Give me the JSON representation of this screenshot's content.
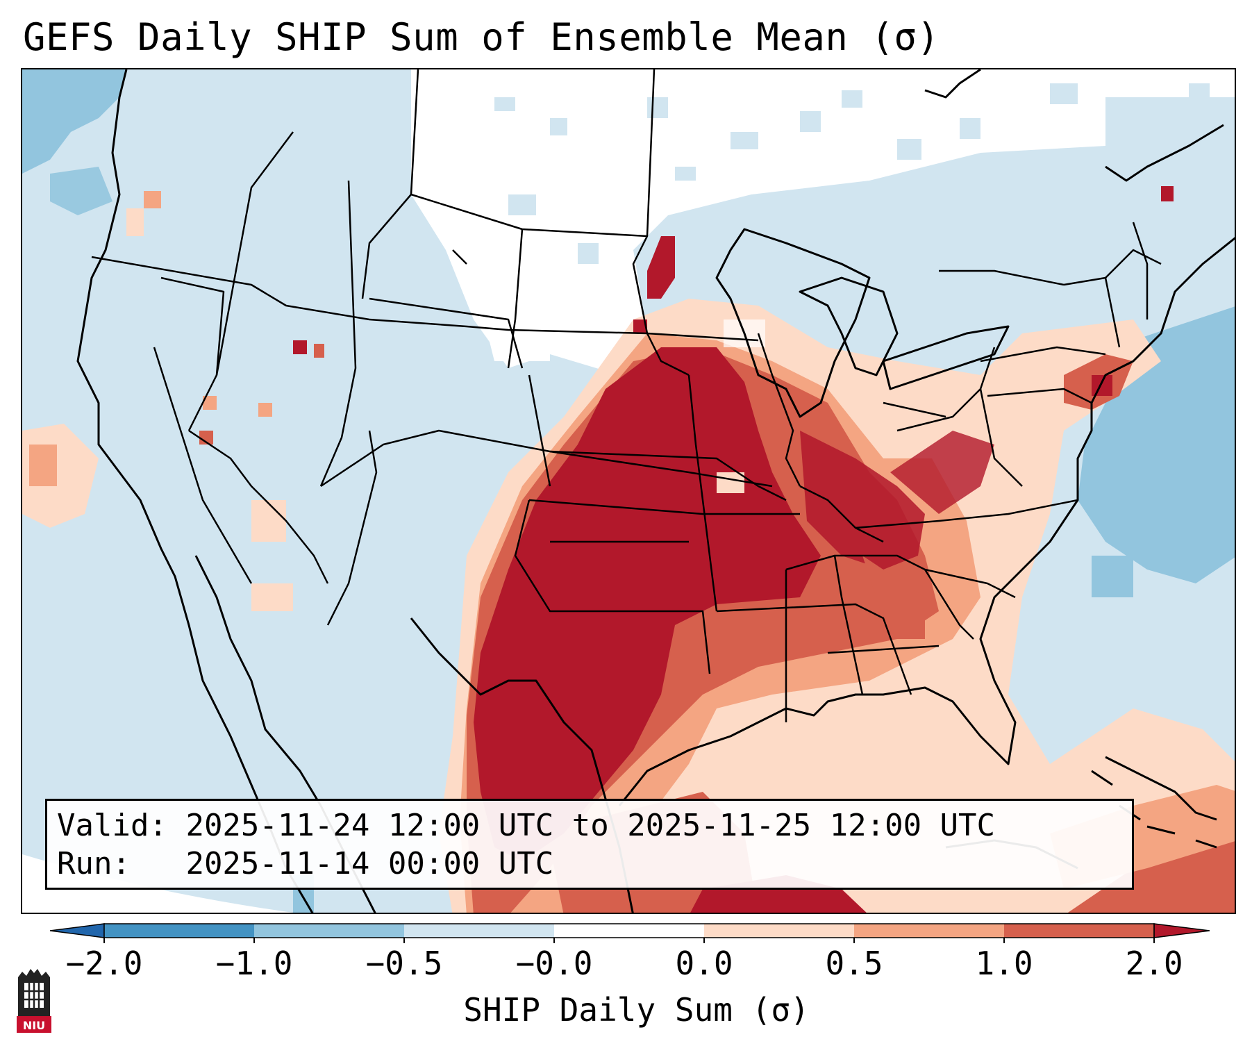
{
  "title": "GEFS Daily SHIP Sum of Ensemble Mean (σ)",
  "valid_label": "Valid:",
  "valid_range": "2025-11-24 12:00 UTC to 2025-11-25 12:00 UTC",
  "run_label": "Run:",
  "run_time": "2025-11-14 00:00 UTC",
  "colorbar": {
    "label": "SHIP Daily Sum (σ)",
    "ticks": [
      "−2.0",
      "−1.0",
      "−0.5",
      "−0.0",
      "0.0",
      "0.5",
      "1.0",
      "2.0"
    ],
    "bins": [
      {
        "range": "<-2.0",
        "color": "#2166ac"
      },
      {
        "range": "-2.0 to -1.0",
        "color": "#4393c3"
      },
      {
        "range": "-1.0 to -0.5",
        "color": "#92c5de"
      },
      {
        "range": "-0.5 to -0.0",
        "color": "#d1e5f0"
      },
      {
        "range": "-0.0 to 0.0",
        "color": "#ffffff"
      },
      {
        "range": "0.0 to 0.5",
        "color": "#fddbc7"
      },
      {
        "range": "0.5 to 1.0",
        "color": "#f4a582"
      },
      {
        "range": "1.0 to 2.0",
        "color": "#d6604d"
      },
      {
        "range": ">2.0",
        "color": "#b2182b"
      }
    ]
  },
  "logo_text": "NIU",
  "colors": {
    "neg_light": "#d1e5f0",
    "neg_mid": "#92c5de",
    "neutral": "#ffffff",
    "pos_light": "#fddbc7",
    "pos_mid": "#f4a582",
    "pos_high": "#d6604d",
    "pos_max": "#b2182b",
    "logo_red": "#c8102e"
  }
}
